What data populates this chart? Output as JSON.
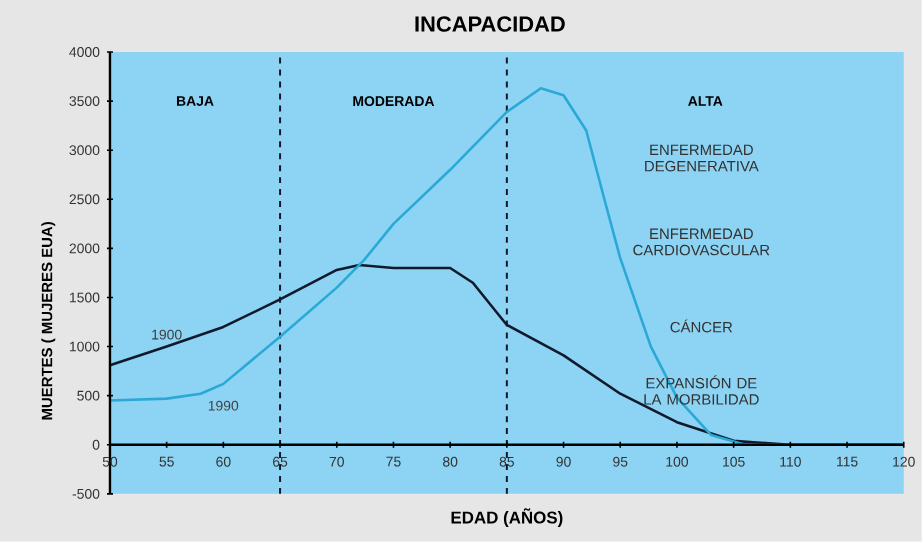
{
  "chart_data": {
    "type": "line",
    "title": "INCAPACIDAD",
    "xlabel": "EDAD (AÑOS)",
    "ylabel": "MUERTES ( MUJERES EUA)",
    "xlim": [
      50,
      120
    ],
    "xticks": [
      50,
      55,
      60,
      65,
      70,
      75,
      80,
      85,
      90,
      95,
      100,
      105,
      110,
      115,
      120
    ],
    "ylim": [
      -500,
      4000
    ],
    "yticks": [
      -500,
      0,
      500,
      1000,
      1500,
      2000,
      2500,
      3000,
      3500,
      4000
    ],
    "grid": false,
    "legend": false,
    "marker": "none",
    "line_style": "solid",
    "series": [
      {
        "name": "1900",
        "color": "#111a2c",
        "x": [
          50,
          55,
          60,
          65,
          70,
          72,
          75,
          80,
          82,
          85,
          90,
          95,
          100,
          105,
          110,
          120
        ],
        "values": [
          810,
          1000,
          1200,
          1480,
          1780,
          1830,
          1800,
          1800,
          1650,
          1220,
          910,
          520,
          230,
          40,
          0,
          0
        ]
      },
      {
        "name": "1990",
        "color": "#2aa9d6",
        "x": [
          50,
          55,
          58,
          60,
          65,
          70,
          72.4,
          75,
          80,
          85,
          88,
          90,
          92,
          93.6,
          95,
          97.7,
          100,
          103,
          106,
          120
        ],
        "values": [
          450,
          470,
          520,
          620,
          1100,
          1600,
          1880,
          2250,
          2800,
          3390,
          3630,
          3560,
          3200,
          2500,
          1900,
          1000,
          480,
          100,
          0,
          0
        ]
      }
    ],
    "bands": [
      {
        "axis": "x",
        "from": 50,
        "to": 65,
        "label": "BAJA",
        "color": "#8dd3f3"
      },
      {
        "axis": "x",
        "from": 65,
        "to": 85,
        "label": "MODERADA",
        "color": "#8dd3f3"
      },
      {
        "axis": "x",
        "from": 85,
        "to": 120,
        "label": "ALTA",
        "color": "#8dd3f3"
      }
    ],
    "ref_lines": [
      {
        "axis": "x",
        "value": 65,
        "line_style": "dashed",
        "color": "#111a2c"
      },
      {
        "axis": "x",
        "value": 85,
        "line_style": "dashed",
        "color": "#111a2c"
      }
    ],
    "annotations": [
      "ENFERMEDAD DEGENERATIVA",
      "ENFERMEDAD CARDIOVASCULAR",
      "CÁNCER",
      "EXPANSIÓN DE LA MORBILIDAD"
    ]
  }
}
